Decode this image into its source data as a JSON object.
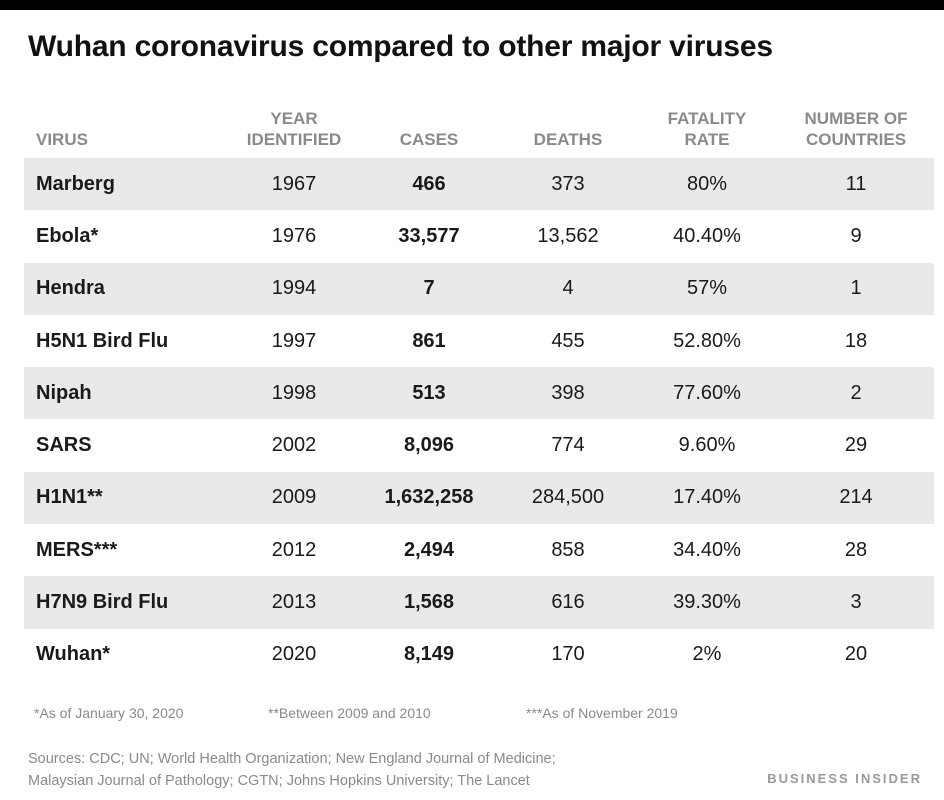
{
  "chart_data": {
    "type": "table",
    "title": "Wuhan coronavirus compared to other major viruses",
    "columns": [
      "VIRUS",
      "YEAR IDENTIFIED",
      "CASES",
      "DEATHS",
      "FATALITY RATE",
      "NUMBER OF COUNTRIES"
    ],
    "header_lines": [
      [
        "",
        "VIRUS"
      ],
      [
        "YEAR",
        "IDENTIFIED"
      ],
      [
        "",
        "CASES"
      ],
      [
        "",
        "DEATHS"
      ],
      [
        "FATALITY",
        "RATE"
      ],
      [
        "NUMBER OF",
        "COUNTRIES"
      ]
    ],
    "rows": [
      {
        "virus": "Marberg",
        "year": "1967",
        "cases": "466",
        "deaths": "373",
        "fatality_rate": "80%",
        "countries": "11"
      },
      {
        "virus": "Ebola*",
        "year": "1976",
        "cases": "33,577",
        "deaths": "13,562",
        "fatality_rate": "40.40%",
        "countries": "9"
      },
      {
        "virus": "Hendra",
        "year": "1994",
        "cases": "7",
        "deaths": "4",
        "fatality_rate": "57%",
        "countries": "1"
      },
      {
        "virus": "H5N1 Bird Flu",
        "year": "1997",
        "cases": "861",
        "deaths": "455",
        "fatality_rate": "52.80%",
        "countries": "18"
      },
      {
        "virus": "Nipah",
        "year": "1998",
        "cases": "513",
        "deaths": "398",
        "fatality_rate": "77.60%",
        "countries": "2"
      },
      {
        "virus": "SARS",
        "year": "2002",
        "cases": "8,096",
        "deaths": "774",
        "fatality_rate": "9.60%",
        "countries": "29"
      },
      {
        "virus": "H1N1**",
        "year": "2009",
        "cases": "1,632,258",
        "deaths": "284,500",
        "fatality_rate": "17.40%",
        "countries": "214"
      },
      {
        "virus": "MERS***",
        "year": "2012",
        "cases": "2,494",
        "deaths": "858",
        "fatality_rate": "34.40%",
        "countries": "28"
      },
      {
        "virus": "H7N9 Bird Flu",
        "year": "2013",
        "cases": "1,568",
        "deaths": "616",
        "fatality_rate": "39.30%",
        "countries": "3"
      },
      {
        "virus": "Wuhan*",
        "year": "2020",
        "cases": "8,149",
        "deaths": "170",
        "fatality_rate": "2%",
        "countries": "20"
      }
    ],
    "footnotes": [
      "*As of January 30, 2020",
      "**Between 2009 and 2010",
      "***As of November 2019"
    ],
    "sources": [
      "Sources: CDC; UN; World Health Organization; New England Journal of Medicine;",
      "Malaysian Journal of Pathology; CGTN; Johns Hopkins University; The Lancet"
    ],
    "brand": "BUSINESS INSIDER"
  },
  "colors": {
    "stripe": "#e9e9e9",
    "header_text": "#8a8a8a",
    "body_text": "#1a1a1a"
  }
}
